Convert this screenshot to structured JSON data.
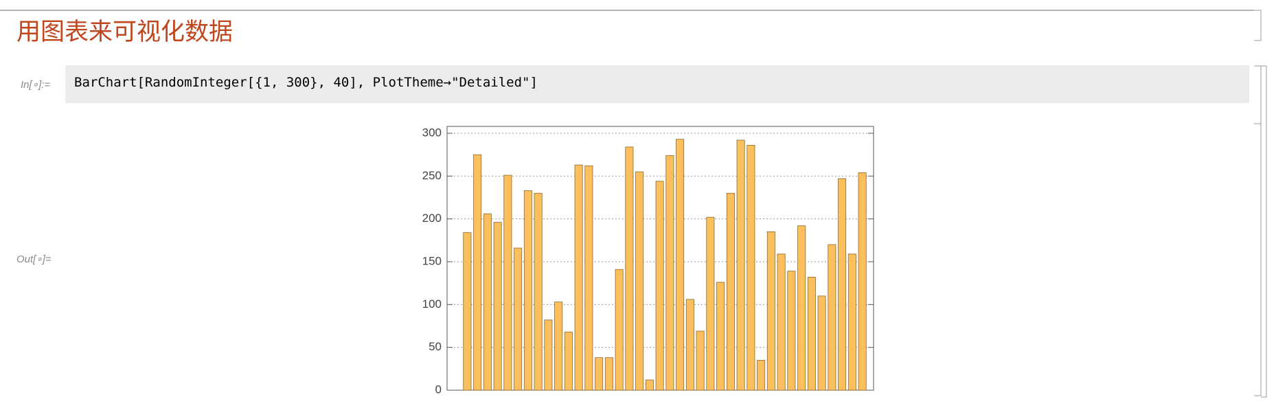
{
  "notebook": {
    "title": "用图表来可视化数据",
    "input_label": "In[∘]:=",
    "input_code": "BarChart[RandomInteger[{1, 300}, 40], PlotTheme→\"Detailed\"]",
    "output_label": "Out[∘]="
  },
  "chart_data": {
    "type": "bar",
    "values": [
      184,
      275,
      206,
      196,
      251,
      166,
      233,
      230,
      82,
      103,
      68,
      263,
      262,
      38,
      38,
      141,
      284,
      255,
      12,
      244,
      274,
      293,
      106,
      69,
      202,
      126,
      230,
      292,
      286,
      35,
      185,
      159,
      139,
      192,
      132,
      110,
      170,
      247,
      159,
      254
    ],
    "color": "#fbbf5e",
    "ylim": [
      0,
      308
    ],
    "yticks": [
      0,
      50,
      100,
      150,
      200,
      250,
      300
    ],
    "grid": true
  }
}
